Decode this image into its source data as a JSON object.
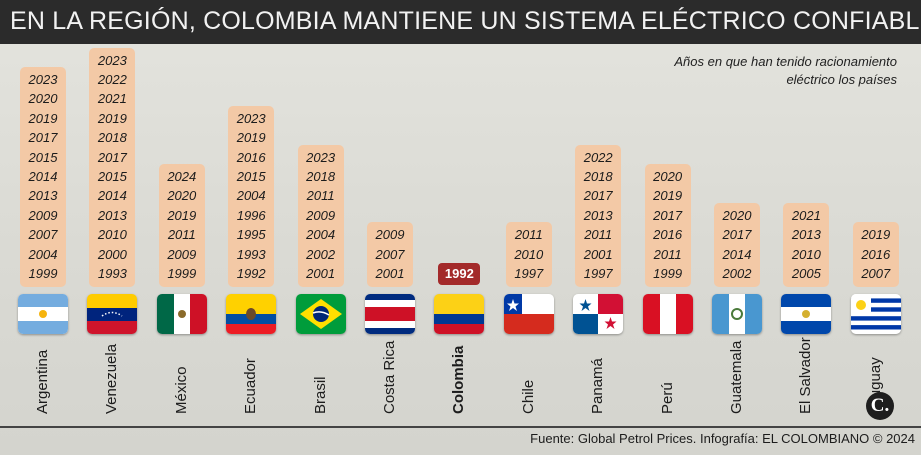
{
  "title": "EN LA REGIÓN, COLOMBIA MANTIENE UN SISTEMA ELÉCTRICO CONFIABLE",
  "note": "Años en que han tenido racionamiento eléctrico los países",
  "source": "Fuente: Global Petrol Prices. Infografía: EL COLOMBIANO © 2024",
  "logo_text": "C.",
  "colors": {
    "column": "#f3c9a6",
    "highlight": "#a32a2a",
    "title_bg": "#2b2b2b"
  },
  "chart_data": {
    "type": "table",
    "title": "EN LA REGIÓN, COLOMBIA MANTIENE UN SISTEMA ELÉCTRICO CONFIABLE",
    "countries": [
      {
        "name": "Argentina",
        "flag": "argentina-flag-icon",
        "years": [
          "2023",
          "2020",
          "2019",
          "2017",
          "2015",
          "2014",
          "2013",
          "2009",
          "2007",
          "2004",
          "1999"
        ]
      },
      {
        "name": "Venezuela",
        "flag": "venezuela-flag-icon",
        "years": [
          "2023",
          "2022",
          "2021",
          "2019",
          "2018",
          "2017",
          "2015",
          "2014",
          "2013",
          "2010",
          "2000",
          "1993"
        ]
      },
      {
        "name": "México",
        "flag": "mexico-flag-icon",
        "years": [
          "2024",
          "2020",
          "2019",
          "2011",
          "2009",
          "1999"
        ]
      },
      {
        "name": "Ecuador",
        "flag": "ecuador-flag-icon",
        "years": [
          "2023",
          "2019",
          "2016",
          "2015",
          "2004",
          "1996",
          "1995",
          "1993",
          "1992"
        ]
      },
      {
        "name": "Brasil",
        "flag": "brasil-flag-icon",
        "years": [
          "2023",
          "2018",
          "2011",
          "2009",
          "2004",
          "2002",
          "2001"
        ]
      },
      {
        "name": "Costa Rica",
        "flag": "costa-rica-flag-icon",
        "years": [
          "2009",
          "2007",
          "2001"
        ]
      },
      {
        "name": "Colombia",
        "flag": "colombia-flag-icon",
        "years": [
          "1992"
        ],
        "highlight": true
      },
      {
        "name": "Chile",
        "flag": "chile-flag-icon",
        "years": [
          "2011",
          "2010",
          "1997"
        ]
      },
      {
        "name": "Panamá",
        "flag": "panama-flag-icon",
        "years": [
          "2022",
          "2018",
          "2017",
          "2013",
          "2011",
          "2001",
          "1997"
        ]
      },
      {
        "name": "Perú",
        "flag": "peru-flag-icon",
        "years": [
          "2020",
          "2019",
          "2017",
          "2016",
          "2011",
          "1999"
        ]
      },
      {
        "name": "Guatemala",
        "flag": "guatemala-flag-icon",
        "years": [
          "2020",
          "2017",
          "2014",
          "2002"
        ]
      },
      {
        "name": "El Salvador",
        "flag": "el-salvador-flag-icon",
        "years": [
          "2021",
          "2013",
          "2010",
          "2005"
        ]
      },
      {
        "name": "Uruguay",
        "flag": "uruguay-flag-icon",
        "years": [
          "2019",
          "2016",
          "2007"
        ]
      }
    ]
  }
}
